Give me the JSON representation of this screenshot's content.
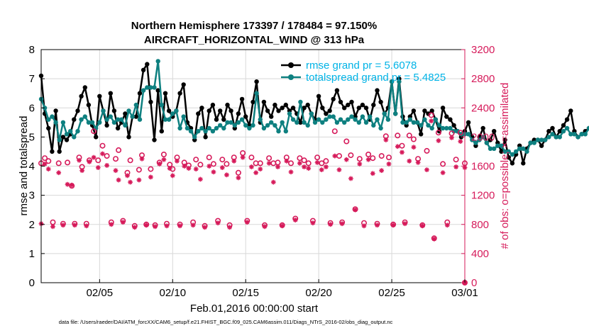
{
  "chart_data": {
    "type": "line",
    "title": "Northern Hemisphere 173397 / 178484 = 97.150%",
    "subtitle": "AIRCRAFT_HORIZONTAL_WIND @ 313 hPa",
    "xlabel": "Feb.01,2016 00:00:00 start",
    "ylabel": "rmse and totalspread",
    "y2label": "# of obs: o=possible; ×=assimilated",
    "footnote": "data file: /Users/raeder/DAI/ATM_forcXX/CAM6_setup/f.e21.FHIST_BGC.f09_025.CAM6assim.011/Diags_NTrS_2016-02/obs_diag_output.nc",
    "xlim": [
      1,
      30
    ],
    "ylim": [
      0,
      8
    ],
    "y2lim": [
      0,
      3200
    ],
    "xticks": [
      5,
      10,
      15,
      20,
      25,
      30
    ],
    "xticklabels": [
      "02/05",
      "02/10",
      "02/15",
      "02/20",
      "02/25",
      "03/01"
    ],
    "yticks": [
      0,
      1,
      2,
      3,
      4,
      5,
      6,
      7,
      8
    ],
    "y2ticks": [
      0,
      400,
      800,
      1200,
      1600,
      2000,
      2400,
      2800,
      3200
    ],
    "grid": true,
    "legend_position": "top-right",
    "series": [
      {
        "name": "rmse grand pr = 5.6078",
        "axis": "left",
        "color": "#000000",
        "marker": "circle",
        "start_day": 1.0,
        "step_days": 0.25,
        "values": [
          7.1,
          5.8,
          5.3,
          4.5,
          5.9,
          4.5,
          5.0,
          4.9,
          5.1,
          5.6,
          5.9,
          6.4,
          6.7,
          6.1,
          5.4,
          5.0,
          6.4,
          5.9,
          5.4,
          6.5,
          5.9,
          5.3,
          5.5,
          5.8,
          5.0,
          5.7,
          5.7,
          6.5,
          7.3,
          7.5,
          6.2,
          4.9,
          6.6,
          5.2,
          6.5,
          5.9,
          5.7,
          5.9,
          6.5,
          6.8,
          5.5,
          5.3,
          4.9,
          5.8,
          6.0,
          5.0,
          5.9,
          6.1,
          5.6,
          5.9,
          5.6,
          6.1,
          5.9,
          5.3,
          5.8,
          6.3,
          5.7,
          5.4,
          6.2,
          6.9,
          5.5,
          6.2,
          5.9,
          5.7,
          6.1,
          5.9,
          6.0,
          6.1,
          5.9,
          6.0,
          5.8,
          5.5,
          6.0,
          6.1,
          5.8,
          5.6,
          6.4,
          6.0,
          5.8,
          5.9,
          6.3,
          6.6,
          6.2,
          6.0,
          6.1,
          6.2,
          5.7,
          6.0,
          6.1,
          6.0,
          5.6,
          6.1,
          6.6,
          6.2,
          5.8,
          6.0,
          6.9,
          5.8,
          7.0,
          5.7,
          5.4,
          5.7,
          5.9,
          5.5,
          5.1,
          5.9,
          5.8,
          5.9,
          5.6,
          5.2,
          6.0,
          5.7,
          5.6,
          5.4,
          5.2,
          5.0,
          5.2,
          5.5,
          5.0,
          4.7,
          5.0,
          5.3,
          4.8,
          4.9,
          5.2,
          4.8,
          4.5,
          4.9,
          4.3,
          4.1,
          4.4,
          4.7,
          4.1,
          4.6,
          4.8,
          4.9,
          4.9,
          4.7,
          4.9,
          5.2,
          5.3,
          5.0,
          5.2,
          5.4,
          5.6,
          5.9,
          5.2,
          5.0,
          5.1,
          5.2,
          5.3,
          5.4,
          5.4,
          5.4,
          5.6,
          5.5,
          5.1,
          5.2
        ]
      },
      {
        "name": "totalspread grand pr = 5.4825",
        "axis": "left",
        "color": "#0e8080",
        "marker": "circle",
        "start_day": 1.0,
        "step_days": 0.25,
        "values": [
          6.3,
          6.0,
          5.6,
          5.7,
          5.5,
          4.9,
          5.5,
          5.1,
          5.2,
          5.0,
          5.2,
          5.6,
          5.7,
          5.5,
          5.5,
          5.3,
          5.5,
          5.9,
          5.6,
          5.7,
          5.5,
          5.6,
          5.6,
          5.4,
          5.9,
          5.7,
          6.1,
          5.6,
          6.6,
          6.7,
          6.7,
          6.7,
          7.6,
          6.1,
          5.6,
          5.6,
          5.8,
          5.9,
          5.3,
          5.7,
          5.3,
          5.2,
          5.0,
          5.2,
          5.3,
          5.2,
          5.3,
          5.2,
          5.3,
          5.4,
          5.3,
          5.5,
          5.5,
          5.4,
          5.5,
          5.6,
          5.4,
          5.3,
          5.4,
          6.5,
          5.6,
          5.3,
          5.4,
          5.5,
          5.4,
          5.2,
          5.5,
          5.2,
          5.8,
          5.6,
          5.5,
          6.2,
          5.5,
          5.4,
          5.8,
          5.5,
          5.6,
          5.5,
          5.6,
          5.7,
          5.7,
          5.5,
          5.6,
          5.5,
          5.6,
          5.7,
          5.6,
          5.5,
          5.7,
          5.5,
          5.7,
          5.4,
          5.6,
          5.3,
          5.8,
          5.6,
          6.9,
          5.8,
          6.9,
          5.5,
          5.5,
          5.6,
          5.5,
          5.5,
          5.4,
          5.6,
          5.4,
          5.3,
          5.6,
          5.4,
          5.3,
          5.3,
          5.3,
          5.2,
          5.2,
          5.1,
          5.1,
          5.1,
          4.9,
          4.8,
          4.9,
          5.0,
          4.8,
          4.6,
          4.6,
          4.7,
          4.7,
          4.5,
          4.5,
          4.4,
          4.5,
          4.6,
          4.6,
          4.5,
          4.8,
          4.8,
          4.9,
          4.9,
          4.9,
          5.0,
          5.1,
          5.0,
          5.0,
          5.2,
          5.3,
          5.1,
          5.1,
          5.0,
          5.1,
          5.1,
          5.3,
          5.3,
          5.3,
          5.4,
          5.2,
          5.2,
          5.2
        ]
      },
      {
        "name": "# obs possible",
        "axis": "right",
        "color": "#d61a5a",
        "marker": "o",
        "points": [
          [
            1.0,
            1640
          ],
          [
            1.25,
            1710
          ],
          [
            1.5,
            1670
          ],
          [
            1.8,
            830
          ],
          [
            2.2,
            1640
          ],
          [
            2.5,
            810
          ],
          [
            2.8,
            1650
          ],
          [
            3.1,
            1330
          ],
          [
            3.3,
            810
          ],
          [
            3.6,
            1720
          ],
          [
            3.8,
            1590
          ],
          [
            4.1,
            810
          ],
          [
            4.3,
            1680
          ],
          [
            4.6,
            2080
          ],
          [
            4.9,
            1680
          ],
          [
            5.2,
            1880
          ],
          [
            5.5,
            1740
          ],
          [
            5.8,
            830
          ],
          [
            6.1,
            1700
          ],
          [
            6.3,
            1820
          ],
          [
            6.6,
            850
          ],
          [
            6.9,
            1510
          ],
          [
            7.1,
            1680
          ],
          [
            7.4,
            780
          ],
          [
            7.7,
            1550
          ],
          [
            7.9,
            1750
          ],
          [
            8.2,
            800
          ],
          [
            8.5,
            1560
          ],
          [
            8.8,
            790
          ],
          [
            9.1,
            1650
          ],
          [
            9.4,
            1760
          ],
          [
            9.6,
            810
          ],
          [
            9.8,
            1620
          ],
          [
            10.0,
            1560
          ],
          [
            10.3,
            1720
          ],
          [
            10.5,
            800
          ],
          [
            10.8,
            1650
          ],
          [
            11.1,
            1610
          ],
          [
            11.4,
            830
          ],
          [
            11.6,
            1690
          ],
          [
            11.9,
            1620
          ],
          [
            12.2,
            780
          ],
          [
            12.5,
            1720
          ],
          [
            12.8,
            1630
          ],
          [
            13.1,
            850
          ],
          [
            13.4,
            1690
          ],
          [
            13.7,
            1630
          ],
          [
            13.9,
            790
          ],
          [
            14.2,
            1720
          ],
          [
            14.5,
            1510
          ],
          [
            14.8,
            1780
          ],
          [
            15.1,
            850
          ],
          [
            15.4,
            1720
          ],
          [
            15.7,
            1640
          ],
          [
            16.0,
            1640
          ],
          [
            16.3,
            790
          ],
          [
            16.6,
            1710
          ],
          [
            16.9,
            1640
          ],
          [
            17.2,
            1650
          ],
          [
            17.5,
            790
          ],
          [
            17.8,
            1720
          ],
          [
            18.1,
            1640
          ],
          [
            18.4,
            880
          ],
          [
            18.7,
            1710
          ],
          [
            19.0,
            1680
          ],
          [
            19.3,
            1640
          ],
          [
            19.6,
            850
          ],
          [
            19.9,
            1720
          ],
          [
            20.2,
            1640
          ],
          [
            20.5,
            1670
          ],
          [
            20.8,
            820
          ],
          [
            21.1,
            2080
          ],
          [
            21.4,
            1740
          ],
          [
            21.6,
            830
          ],
          [
            21.9,
            1940
          ],
          [
            22.2,
            1750
          ],
          [
            22.5,
            1010
          ],
          [
            22.8,
            1700
          ],
          [
            23.1,
            820
          ],
          [
            23.4,
            1760
          ],
          [
            23.7,
            1710
          ],
          [
            24.0,
            810
          ],
          [
            24.3,
            1740
          ],
          [
            24.6,
            2010
          ],
          [
            24.8,
            1720
          ],
          [
            25.1,
            800
          ],
          [
            25.4,
            2020
          ],
          [
            25.7,
            1880
          ],
          [
            25.9,
            830
          ],
          [
            26.2,
            2020
          ],
          [
            26.5,
            1970
          ],
          [
            26.8,
            1700
          ],
          [
            27.1,
            790
          ],
          [
            27.4,
            1810
          ],
          [
            27.7,
            2300
          ],
          [
            27.9,
            610
          ],
          [
            28.2,
            2060
          ],
          [
            28.5,
            1630
          ],
          [
            28.8,
            830
          ],
          [
            29.1,
            2050
          ],
          [
            29.4,
            1690
          ],
          [
            29.7,
            2060
          ],
          [
            30.0,
            1640
          ]
        ]
      },
      {
        "name": "# obs assimilated",
        "axis": "right",
        "color": "#d61a5a",
        "marker": "x",
        "points": [
          [
            1.0,
            810
          ],
          [
            1.25,
            1630
          ],
          [
            1.5,
            1560
          ],
          [
            1.8,
            770
          ],
          [
            2.2,
            1510
          ],
          [
            2.5,
            790
          ],
          [
            2.8,
            1350
          ],
          [
            3.1,
            1340
          ],
          [
            3.3,
            790
          ],
          [
            3.6,
            1680
          ],
          [
            3.8,
            1540
          ],
          [
            4.1,
            780
          ],
          [
            4.3,
            1660
          ],
          [
            4.6,
            1720
          ],
          [
            4.9,
            1580
          ],
          [
            5.2,
            1770
          ],
          [
            5.5,
            1610
          ],
          [
            5.8,
            800
          ],
          [
            6.1,
            1540
          ],
          [
            6.3,
            1410
          ],
          [
            6.6,
            830
          ],
          [
            6.9,
            1470
          ],
          [
            7.1,
            1380
          ],
          [
            7.4,
            760
          ],
          [
            7.7,
            1410
          ],
          [
            7.9,
            1700
          ],
          [
            8.2,
            790
          ],
          [
            8.5,
            1450
          ],
          [
            8.8,
            770
          ],
          [
            9.1,
            1630
          ],
          [
            9.4,
            1690
          ],
          [
            9.6,
            780
          ],
          [
            9.8,
            1570
          ],
          [
            10.0,
            1470
          ],
          [
            10.3,
            1670
          ],
          [
            10.5,
            780
          ],
          [
            10.8,
            1600
          ],
          [
            11.1,
            1570
          ],
          [
            11.4,
            790
          ],
          [
            11.6,
            1560
          ],
          [
            11.9,
            1420
          ],
          [
            12.2,
            760
          ],
          [
            12.5,
            1600
          ],
          [
            12.8,
            1520
          ],
          [
            13.1,
            820
          ],
          [
            13.4,
            1580
          ],
          [
            13.7,
            1480
          ],
          [
            13.9,
            760
          ],
          [
            14.2,
            1670
          ],
          [
            14.5,
            1440
          ],
          [
            14.8,
            1720
          ],
          [
            15.1,
            830
          ],
          [
            15.4,
            1590
          ],
          [
            15.7,
            1510
          ],
          [
            16.0,
            1560
          ],
          [
            16.3,
            770
          ],
          [
            16.6,
            1640
          ],
          [
            16.9,
            1380
          ],
          [
            17.2,
            1590
          ],
          [
            17.5,
            780
          ],
          [
            17.8,
            1670
          ],
          [
            18.1,
            1520
          ],
          [
            18.4,
            860
          ],
          [
            18.7,
            1640
          ],
          [
            19.0,
            1590
          ],
          [
            19.3,
            1570
          ],
          [
            19.6,
            820
          ],
          [
            19.9,
            1650
          ],
          [
            20.2,
            1550
          ],
          [
            20.5,
            1590
          ],
          [
            20.8,
            800
          ],
          [
            21.1,
            1740
          ],
          [
            21.4,
            1550
          ],
          [
            21.6,
            810
          ],
          [
            21.9,
            1690
          ],
          [
            22.2,
            1430
          ],
          [
            22.5,
            1000
          ],
          [
            22.8,
            1630
          ],
          [
            23.1,
            780
          ],
          [
            23.4,
            1690
          ],
          [
            23.7,
            1500
          ],
          [
            24.0,
            790
          ],
          [
            24.3,
            1540
          ],
          [
            24.6,
            1960
          ],
          [
            24.8,
            1630
          ],
          [
            25.1,
            790
          ],
          [
            25.4,
            1870
          ],
          [
            25.7,
            1790
          ],
          [
            25.9,
            810
          ],
          [
            26.2,
            1670
          ],
          [
            26.5,
            1860
          ],
          [
            26.8,
            1650
          ],
          [
            27.1,
            780
          ],
          [
            27.4,
            1550
          ],
          [
            27.7,
            2220
          ],
          [
            27.9,
            600
          ],
          [
            28.2,
            1950
          ],
          [
            28.5,
            1510
          ],
          [
            28.8,
            790
          ],
          [
            29.1,
            1990
          ],
          [
            29.4,
            1590
          ],
          [
            29.7,
            1940
          ],
          [
            30.0,
            1580
          ]
        ]
      }
    ]
  }
}
